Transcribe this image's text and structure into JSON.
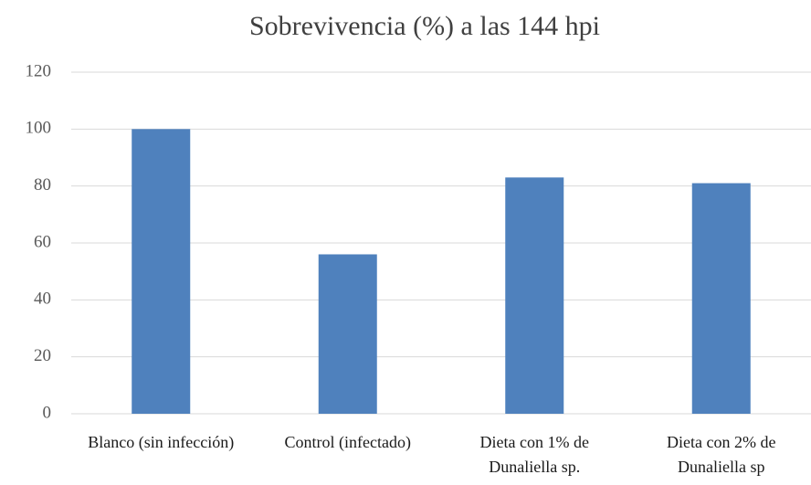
{
  "chart_data": {
    "type": "bar",
    "title": "Sobrevivencia (%)  a las 144 hpi",
    "categories": [
      "Blanco (sin infección)",
      "Control (infectado)",
      "Dieta con 1% de Dunaliella sp.",
      "Dieta con 2% de Dunaliella sp"
    ],
    "values": [
      100,
      56,
      83,
      81
    ],
    "color": "#4f81bd",
    "ylim": [
      0,
      120
    ],
    "yticks": [
      0,
      20,
      40,
      60,
      80,
      100,
      120
    ],
    "grid": true
  }
}
